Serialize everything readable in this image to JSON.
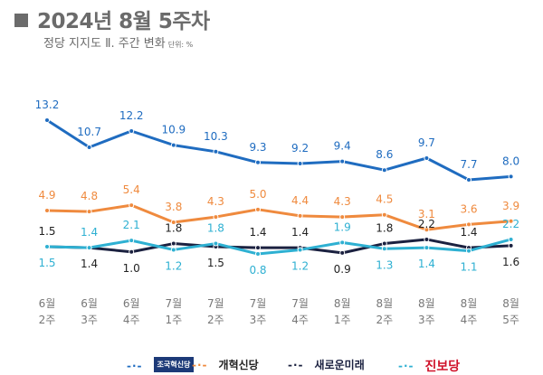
{
  "header": {
    "title": "2024년 8월 5주차",
    "subtitle": "정당 지지도 Ⅱ. 주간 변화",
    "unit": "단위: %"
  },
  "chart_data": {
    "type": "line",
    "title": "2024년 8월 5주차",
    "subtitle": "정당 지지도 Ⅱ. 주간 변화",
    "unit": "%",
    "categories": [
      "6월 2주",
      "6월 3주",
      "6월 4주",
      "7월 1주",
      "7월 2주",
      "7월 3주",
      "7월 4주",
      "8월 1주",
      "8월 2주",
      "8월 3주",
      "8월 4주",
      "8월 5주"
    ],
    "category_lines": [
      [
        "6월",
        "2주"
      ],
      [
        "6월",
        "3주"
      ],
      [
        "6월",
        "4주"
      ],
      [
        "7월",
        "1주"
      ],
      [
        "7월",
        "2주"
      ],
      [
        "7월",
        "3주"
      ],
      [
        "7월",
        "4주"
      ],
      [
        "8월",
        "1주"
      ],
      [
        "8월",
        "2주"
      ],
      [
        "8월",
        "3주"
      ],
      [
        "8월",
        "4주"
      ],
      [
        "8월",
        "5주"
      ]
    ],
    "grid": false,
    "legend_position": "bottom",
    "series": [
      {
        "name": "조국혁신당",
        "color": "#1f6cc0",
        "values": [
          13.2,
          10.7,
          12.2,
          10.9,
          10.3,
          9.3,
          9.2,
          9.4,
          8.6,
          9.7,
          7.7,
          8.0
        ]
      },
      {
        "name": "개혁신당",
        "color": "#ef8a3e",
        "values": [
          4.9,
          4.8,
          5.4,
          3.8,
          4.3,
          5.0,
          4.4,
          4.3,
          4.5,
          3.1,
          3.6,
          3.9
        ]
      },
      {
        "name": "새로운미래",
        "color": "#1b2140",
        "values": [
          1.5,
          1.4,
          1.0,
          1.8,
          1.5,
          1.4,
          1.4,
          0.9,
          1.8,
          2.2,
          1.4,
          1.6
        ]
      },
      {
        "name": "진보당",
        "color": "#2eb0d2",
        "values": [
          1.5,
          1.4,
          2.1,
          1.2,
          1.8,
          0.8,
          1.2,
          1.9,
          1.3,
          1.4,
          1.1,
          2.2
        ]
      }
    ]
  },
  "legend": [
    {
      "label": "조국혁신당",
      "color": "#1f6cc0"
    },
    {
      "label": "개혁신당",
      "color": "#ef8a3e"
    },
    {
      "label": "새로운미래",
      "color": "#1b2140"
    },
    {
      "label": "진보당",
      "color": "#2eb0d2",
      "text_color": "#d0122a"
    }
  ]
}
